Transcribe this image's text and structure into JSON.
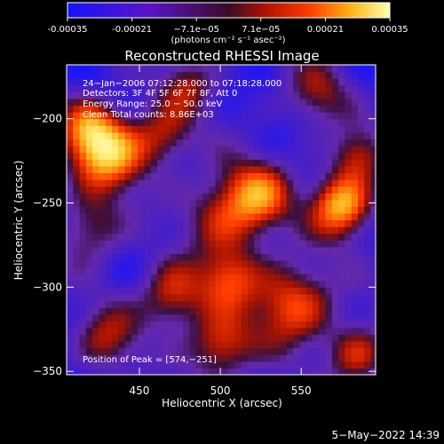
{
  "colorbar": {
    "tick_labels": [
      "-0.00035",
      "-0.00021",
      "−7.1e−05",
      "7.1e−05",
      "0.00021",
      "0.00035"
    ],
    "range": [
      -0.00035,
      0.00035
    ],
    "units_label": "(photons cm⁻² s⁻¹ asec⁻²)"
  },
  "chart_data": {
    "type": "heatmap",
    "title": "Reconstructed RHESSI Image",
    "xlabel": "Heliocentric X (arcsec)",
    "ylabel": "Heliocentric Y (arcsec)",
    "xlim": [
      405,
      596
    ],
    "ylim": [
      -352,
      -168
    ],
    "xticks": [
      450,
      500,
      550
    ],
    "yticks": [
      -200,
      -250,
      -300,
      -350
    ],
    "grid": false,
    "peak_position": [
      574,
      -251
    ],
    "hotspots": [
      {
        "x": 430,
        "y": -220,
        "intensity": 1.0,
        "spread": 16
      },
      {
        "x": 418,
        "y": -205,
        "intensity": 0.55,
        "spread": 12
      },
      {
        "x": 465,
        "y": -210,
        "intensity": 0.55,
        "spread": 13
      },
      {
        "x": 505,
        "y": -255,
        "intensity": 0.65,
        "spread": 18
      },
      {
        "x": 525,
        "y": -245,
        "intensity": 0.6,
        "spread": 14
      },
      {
        "x": 575,
        "y": -251,
        "intensity": 1.05,
        "spread": 13
      },
      {
        "x": 585,
        "y": -222,
        "intensity": 0.55,
        "spread": 11
      },
      {
        "x": 545,
        "y": -310,
        "intensity": 0.75,
        "spread": 18
      },
      {
        "x": 505,
        "y": -295,
        "intensity": 0.6,
        "spread": 13
      },
      {
        "x": 470,
        "y": -305,
        "intensity": 0.65,
        "spread": 14
      },
      {
        "x": 420,
        "y": -265,
        "intensity": 0.5,
        "spread": 14
      },
      {
        "x": 430,
        "y": -330,
        "intensity": 0.5,
        "spread": 14
      },
      {
        "x": 500,
        "y": -335,
        "intensity": 0.7,
        "spread": 14
      },
      {
        "x": 585,
        "y": -340,
        "intensity": 0.6,
        "spread": 13
      },
      {
        "x": 560,
        "y": -185,
        "intensity": 0.45,
        "spread": 14
      },
      {
        "x": 480,
        "y": -180,
        "intensity": 0.45,
        "spread": 12
      }
    ]
  },
  "info_block": [
    "24−Jan−2006 07:12:28.000 to 07:18:28.000",
    "Detectors: 3F 4F 5F 6F 7F 8F, Att 0",
    "Energy Range: 25.0 − 50.0 keV",
    "Clean      Total counts: 8.86E+03"
  ],
  "peak_label": "Position of Peak = [574,−251]",
  "timestamp": "5−May−2022 14:39"
}
